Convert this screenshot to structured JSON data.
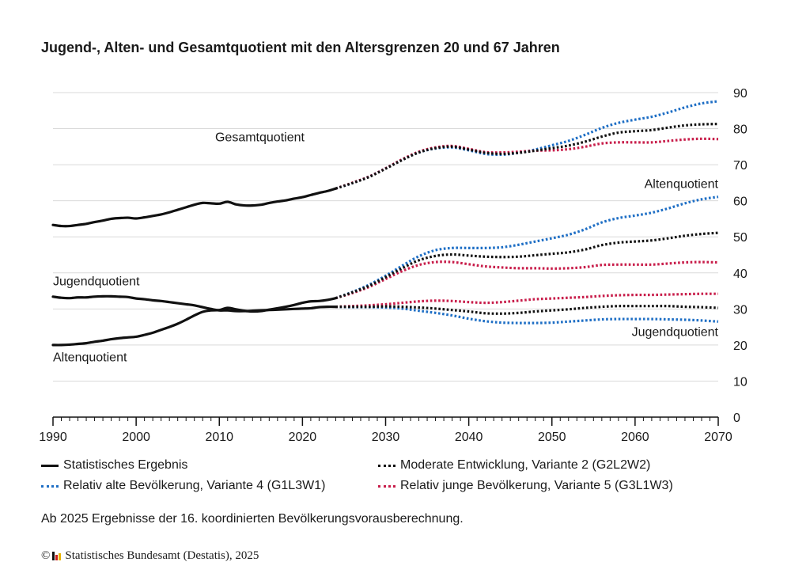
{
  "title": "Jugend-, Alten- und Gesamtquotient mit den Altersgrenzen 20 und 67 Jahren",
  "note": "Ab 2025 Ergebnisse der 16. koordinierten Bevölkerungsvorausberechnung.",
  "source": {
    "copyright_symbol": "©",
    "text": "Statistisches Bundesamt (Destatis), 2025"
  },
  "legend": [
    {
      "id": "hist",
      "label": "Statistisches Ergebnis"
    },
    {
      "id": "v2",
      "label": "Moderate Entwicklung, Variante 2 (G2L2W2)"
    },
    {
      "id": "v4",
      "label": "Relativ alte Bevölkerung, Variante 4 (G1L3W1)"
    },
    {
      "id": "v5",
      "label": "Relativ junge Bevölkerung, Variante 5 (G3L1W3)"
    }
  ],
  "colors": {
    "hist": "#111111",
    "v2": "#111111",
    "v4": "#1f6fc5",
    "v5": "#c81e4b",
    "grid": "#d9d9d9",
    "axis": "#111111"
  },
  "chart_data": {
    "type": "line",
    "title": "Jugend-, Alten- und Gesamtquotient mit den Altersgrenzen 20 und 67 Jahren",
    "xlim": [
      1990,
      2070
    ],
    "ylim": [
      0,
      90
    ],
    "x_ticks": [
      1990,
      2000,
      2010,
      2020,
      2030,
      2040,
      2050,
      2060,
      2070
    ],
    "y_ticks": [
      0,
      10,
      20,
      30,
      40,
      50,
      60,
      70,
      80,
      90
    ],
    "grid": true,
    "y_axis_position": "right",
    "annotations": [
      {
        "text": "Gesamtquotient",
        "x": 2009.5,
        "y": 76.5,
        "anchor": "start"
      },
      {
        "text": "Altenquotient",
        "x": 2070,
        "y": 63.5,
        "anchor": "end"
      },
      {
        "text": "Jugendquotient",
        "x": 1990,
        "y": 36.5,
        "anchor": "start"
      },
      {
        "text": "Jugendquotient",
        "x": 2070,
        "y": 22.5,
        "anchor": "end"
      },
      {
        "text": "Altenquotient",
        "x": 1990,
        "y": 15.5,
        "anchor": "start"
      }
    ],
    "series": [
      {
        "name": "Gesamtquotient",
        "variant": "hist",
        "style": "solid",
        "x": [
          1990,
          1991,
          1992,
          1993,
          1994,
          1995,
          1996,
          1997,
          1998,
          1999,
          2000,
          2001,
          2002,
          2003,
          2004,
          2005,
          2006,
          2007,
          2008,
          2009,
          2010,
          2011,
          2012,
          2013,
          2014,
          2015,
          2016,
          2017,
          2018,
          2019,
          2020,
          2021,
          2022,
          2023,
          2024
        ],
        "y": [
          53.3,
          53.0,
          53.0,
          53.3,
          53.6,
          54.1,
          54.5,
          55.0,
          55.2,
          55.3,
          55.1,
          55.4,
          55.8,
          56.2,
          56.8,
          57.5,
          58.2,
          58.9,
          59.4,
          59.3,
          59.2,
          59.7,
          59.0,
          58.7,
          58.7,
          58.9,
          59.4,
          59.8,
          60.1,
          60.6,
          61.0,
          61.6,
          62.2,
          62.7,
          63.4
        ]
      },
      {
        "name": "Jugendquotient",
        "variant": "hist",
        "style": "solid",
        "x": [
          1990,
          1991,
          1992,
          1993,
          1994,
          1995,
          1996,
          1997,
          1998,
          1999,
          2000,
          2001,
          2002,
          2003,
          2004,
          2005,
          2006,
          2007,
          2008,
          2009,
          2010,
          2011,
          2012,
          2013,
          2014,
          2015,
          2016,
          2017,
          2018,
          2019,
          2020,
          2021,
          2022,
          2023,
          2024
        ],
        "y": [
          33.4,
          33.1,
          33.0,
          33.2,
          33.2,
          33.4,
          33.5,
          33.5,
          33.4,
          33.3,
          32.9,
          32.7,
          32.4,
          32.2,
          31.9,
          31.6,
          31.3,
          31.0,
          30.5,
          30.0,
          29.6,
          29.6,
          29.4,
          29.4,
          29.5,
          29.6,
          29.7,
          29.8,
          29.9,
          30.0,
          30.1,
          30.2,
          30.5,
          30.6,
          30.6
        ]
      },
      {
        "name": "Altenquotient",
        "variant": "hist",
        "style": "solid",
        "x": [
          1990,
          1991,
          1992,
          1993,
          1994,
          1995,
          1996,
          1997,
          1998,
          1999,
          2000,
          2001,
          2002,
          2003,
          2004,
          2005,
          2006,
          2007,
          2008,
          2009,
          2010,
          2011,
          2012,
          2013,
          2014,
          2015,
          2016,
          2017,
          2018,
          2019,
          2020,
          2021,
          2022,
          2023,
          2024
        ],
        "y": [
          20.0,
          20.0,
          20.1,
          20.3,
          20.5,
          20.9,
          21.2,
          21.6,
          21.9,
          22.1,
          22.3,
          22.8,
          23.4,
          24.2,
          25.0,
          25.9,
          27.0,
          28.2,
          29.2,
          29.6,
          29.7,
          30.3,
          29.9,
          29.5,
          29.3,
          29.4,
          29.8,
          30.2,
          30.6,
          31.1,
          31.7,
          32.1,
          32.2,
          32.5,
          33.0
        ]
      },
      {
        "name": "Gesamtquotient",
        "variant": "v2",
        "style": "dotted",
        "x": [
          2024,
          2026,
          2028,
          2030,
          2032,
          2034,
          2036,
          2038,
          2040,
          2042,
          2044,
          2046,
          2048,
          2050,
          2052,
          2054,
          2056,
          2058,
          2060,
          2062,
          2064,
          2066,
          2068,
          2070
        ],
        "y": [
          63.4,
          64.9,
          66.6,
          68.9,
          71.3,
          73.4,
          74.6,
          75.0,
          74.2,
          73.3,
          73.0,
          73.3,
          73.9,
          74.6,
          75.3,
          76.4,
          77.8,
          78.9,
          79.3,
          79.6,
          80.3,
          80.9,
          81.2,
          81.3
        ]
      },
      {
        "name": "Gesamtquotient",
        "variant": "v4",
        "style": "dotted",
        "x": [
          2024,
          2026,
          2028,
          2030,
          2032,
          2034,
          2036,
          2038,
          2040,
          2042,
          2044,
          2046,
          2048,
          2050,
          2052,
          2054,
          2056,
          2058,
          2060,
          2062,
          2064,
          2066,
          2068,
          2070
        ],
        "y": [
          63.4,
          64.9,
          66.7,
          69.0,
          71.4,
          73.4,
          74.5,
          74.8,
          74.0,
          73.0,
          72.8,
          73.3,
          74.2,
          75.4,
          76.6,
          78.3,
          80.2,
          81.6,
          82.5,
          83.3,
          84.5,
          85.9,
          87.0,
          87.6
        ]
      },
      {
        "name": "Gesamtquotient",
        "variant": "v5",
        "style": "dotted",
        "x": [
          2024,
          2026,
          2028,
          2030,
          2032,
          2034,
          2036,
          2038,
          2040,
          2042,
          2044,
          2046,
          2048,
          2050,
          2052,
          2054,
          2056,
          2058,
          2060,
          2062,
          2064,
          2066,
          2068,
          2070
        ],
        "y": [
          63.4,
          65.0,
          66.7,
          69.0,
          71.5,
          73.6,
          74.8,
          75.2,
          74.4,
          73.5,
          73.4,
          73.6,
          73.9,
          74.0,
          74.3,
          75.0,
          75.9,
          76.2,
          76.2,
          76.2,
          76.6,
          77.0,
          77.2,
          77.1
        ]
      },
      {
        "name": "Altenquotient",
        "variant": "v2",
        "style": "dotted",
        "x": [
          2024,
          2026,
          2028,
          2030,
          2032,
          2034,
          2036,
          2038,
          2040,
          2042,
          2044,
          2046,
          2048,
          2050,
          2052,
          2054,
          2056,
          2058,
          2060,
          2062,
          2064,
          2066,
          2068,
          2070
        ],
        "y": [
          33.0,
          34.6,
          36.4,
          38.8,
          41.3,
          43.5,
          44.7,
          45.1,
          44.8,
          44.5,
          44.4,
          44.5,
          44.9,
          45.3,
          45.7,
          46.5,
          47.7,
          48.4,
          48.7,
          49.0,
          49.6,
          50.3,
          50.8,
          51.1
        ]
      },
      {
        "name": "Altenquotient",
        "variant": "v4",
        "style": "dotted",
        "x": [
          2024,
          2026,
          2028,
          2030,
          2032,
          2034,
          2036,
          2038,
          2040,
          2042,
          2044,
          2046,
          2048,
          2050,
          2052,
          2054,
          2056,
          2058,
          2060,
          2062,
          2064,
          2066,
          2068,
          2070
        ],
        "y": [
          33.0,
          34.7,
          36.7,
          39.2,
          42.0,
          44.6,
          46.3,
          46.9,
          46.9,
          46.9,
          47.1,
          47.8,
          48.7,
          49.6,
          50.6,
          52.1,
          54.0,
          55.2,
          55.9,
          56.7,
          57.9,
          59.3,
          60.4,
          61.1
        ]
      },
      {
        "name": "Altenquotient",
        "variant": "v5",
        "style": "dotted",
        "x": [
          2024,
          2026,
          2028,
          2030,
          2032,
          2034,
          2036,
          2038,
          2040,
          2042,
          2044,
          2046,
          2048,
          2050,
          2052,
          2054,
          2056,
          2058,
          2060,
          2062,
          2064,
          2066,
          2068,
          2070
        ],
        "y": [
          33.0,
          34.4,
          36.1,
          38.3,
          40.5,
          42.2,
          43.0,
          43.0,
          42.4,
          41.8,
          41.5,
          41.3,
          41.3,
          41.2,
          41.3,
          41.6,
          42.2,
          42.3,
          42.3,
          42.3,
          42.6,
          42.9,
          43.0,
          42.9
        ]
      },
      {
        "name": "Jugendquotient",
        "variant": "v2",
        "style": "dotted",
        "x": [
          2024,
          2026,
          2028,
          2030,
          2032,
          2034,
          2036,
          2038,
          2040,
          2042,
          2044,
          2046,
          2048,
          2050,
          2052,
          2054,
          2056,
          2058,
          2060,
          2062,
          2064,
          2066,
          2068,
          2070
        ],
        "y": [
          30.6,
          30.6,
          30.6,
          30.7,
          30.6,
          30.4,
          30.1,
          29.7,
          29.3,
          28.8,
          28.7,
          28.9,
          29.3,
          29.6,
          29.9,
          30.3,
          30.6,
          30.8,
          30.8,
          30.8,
          30.8,
          30.6,
          30.5,
          30.3
        ]
      },
      {
        "name": "Jugendquotient",
        "variant": "v4",
        "style": "dotted",
        "x": [
          2024,
          2026,
          2028,
          2030,
          2032,
          2034,
          2036,
          2038,
          2040,
          2042,
          2044,
          2046,
          2048,
          2050,
          2052,
          2054,
          2056,
          2058,
          2060,
          2062,
          2064,
          2066,
          2068,
          2070
        ],
        "y": [
          30.6,
          30.5,
          30.5,
          30.4,
          30.1,
          29.5,
          28.9,
          28.2,
          27.3,
          26.6,
          26.2,
          26.1,
          26.1,
          26.2,
          26.5,
          26.8,
          27.1,
          27.2,
          27.2,
          27.2,
          27.1,
          27.0,
          26.8,
          26.5
        ]
      },
      {
        "name": "Jugendquotient",
        "variant": "v5",
        "style": "dotted",
        "x": [
          2024,
          2026,
          2028,
          2030,
          2032,
          2034,
          2036,
          2038,
          2040,
          2042,
          2044,
          2046,
          2048,
          2050,
          2052,
          2054,
          2056,
          2058,
          2060,
          2062,
          2064,
          2066,
          2068,
          2070
        ],
        "y": [
          30.6,
          30.8,
          31.0,
          31.3,
          31.7,
          32.1,
          32.3,
          32.2,
          31.9,
          31.7,
          31.9,
          32.3,
          32.7,
          32.9,
          33.1,
          33.3,
          33.6,
          33.8,
          33.9,
          33.9,
          34.0,
          34.1,
          34.2,
          34.2
        ]
      }
    ]
  }
}
